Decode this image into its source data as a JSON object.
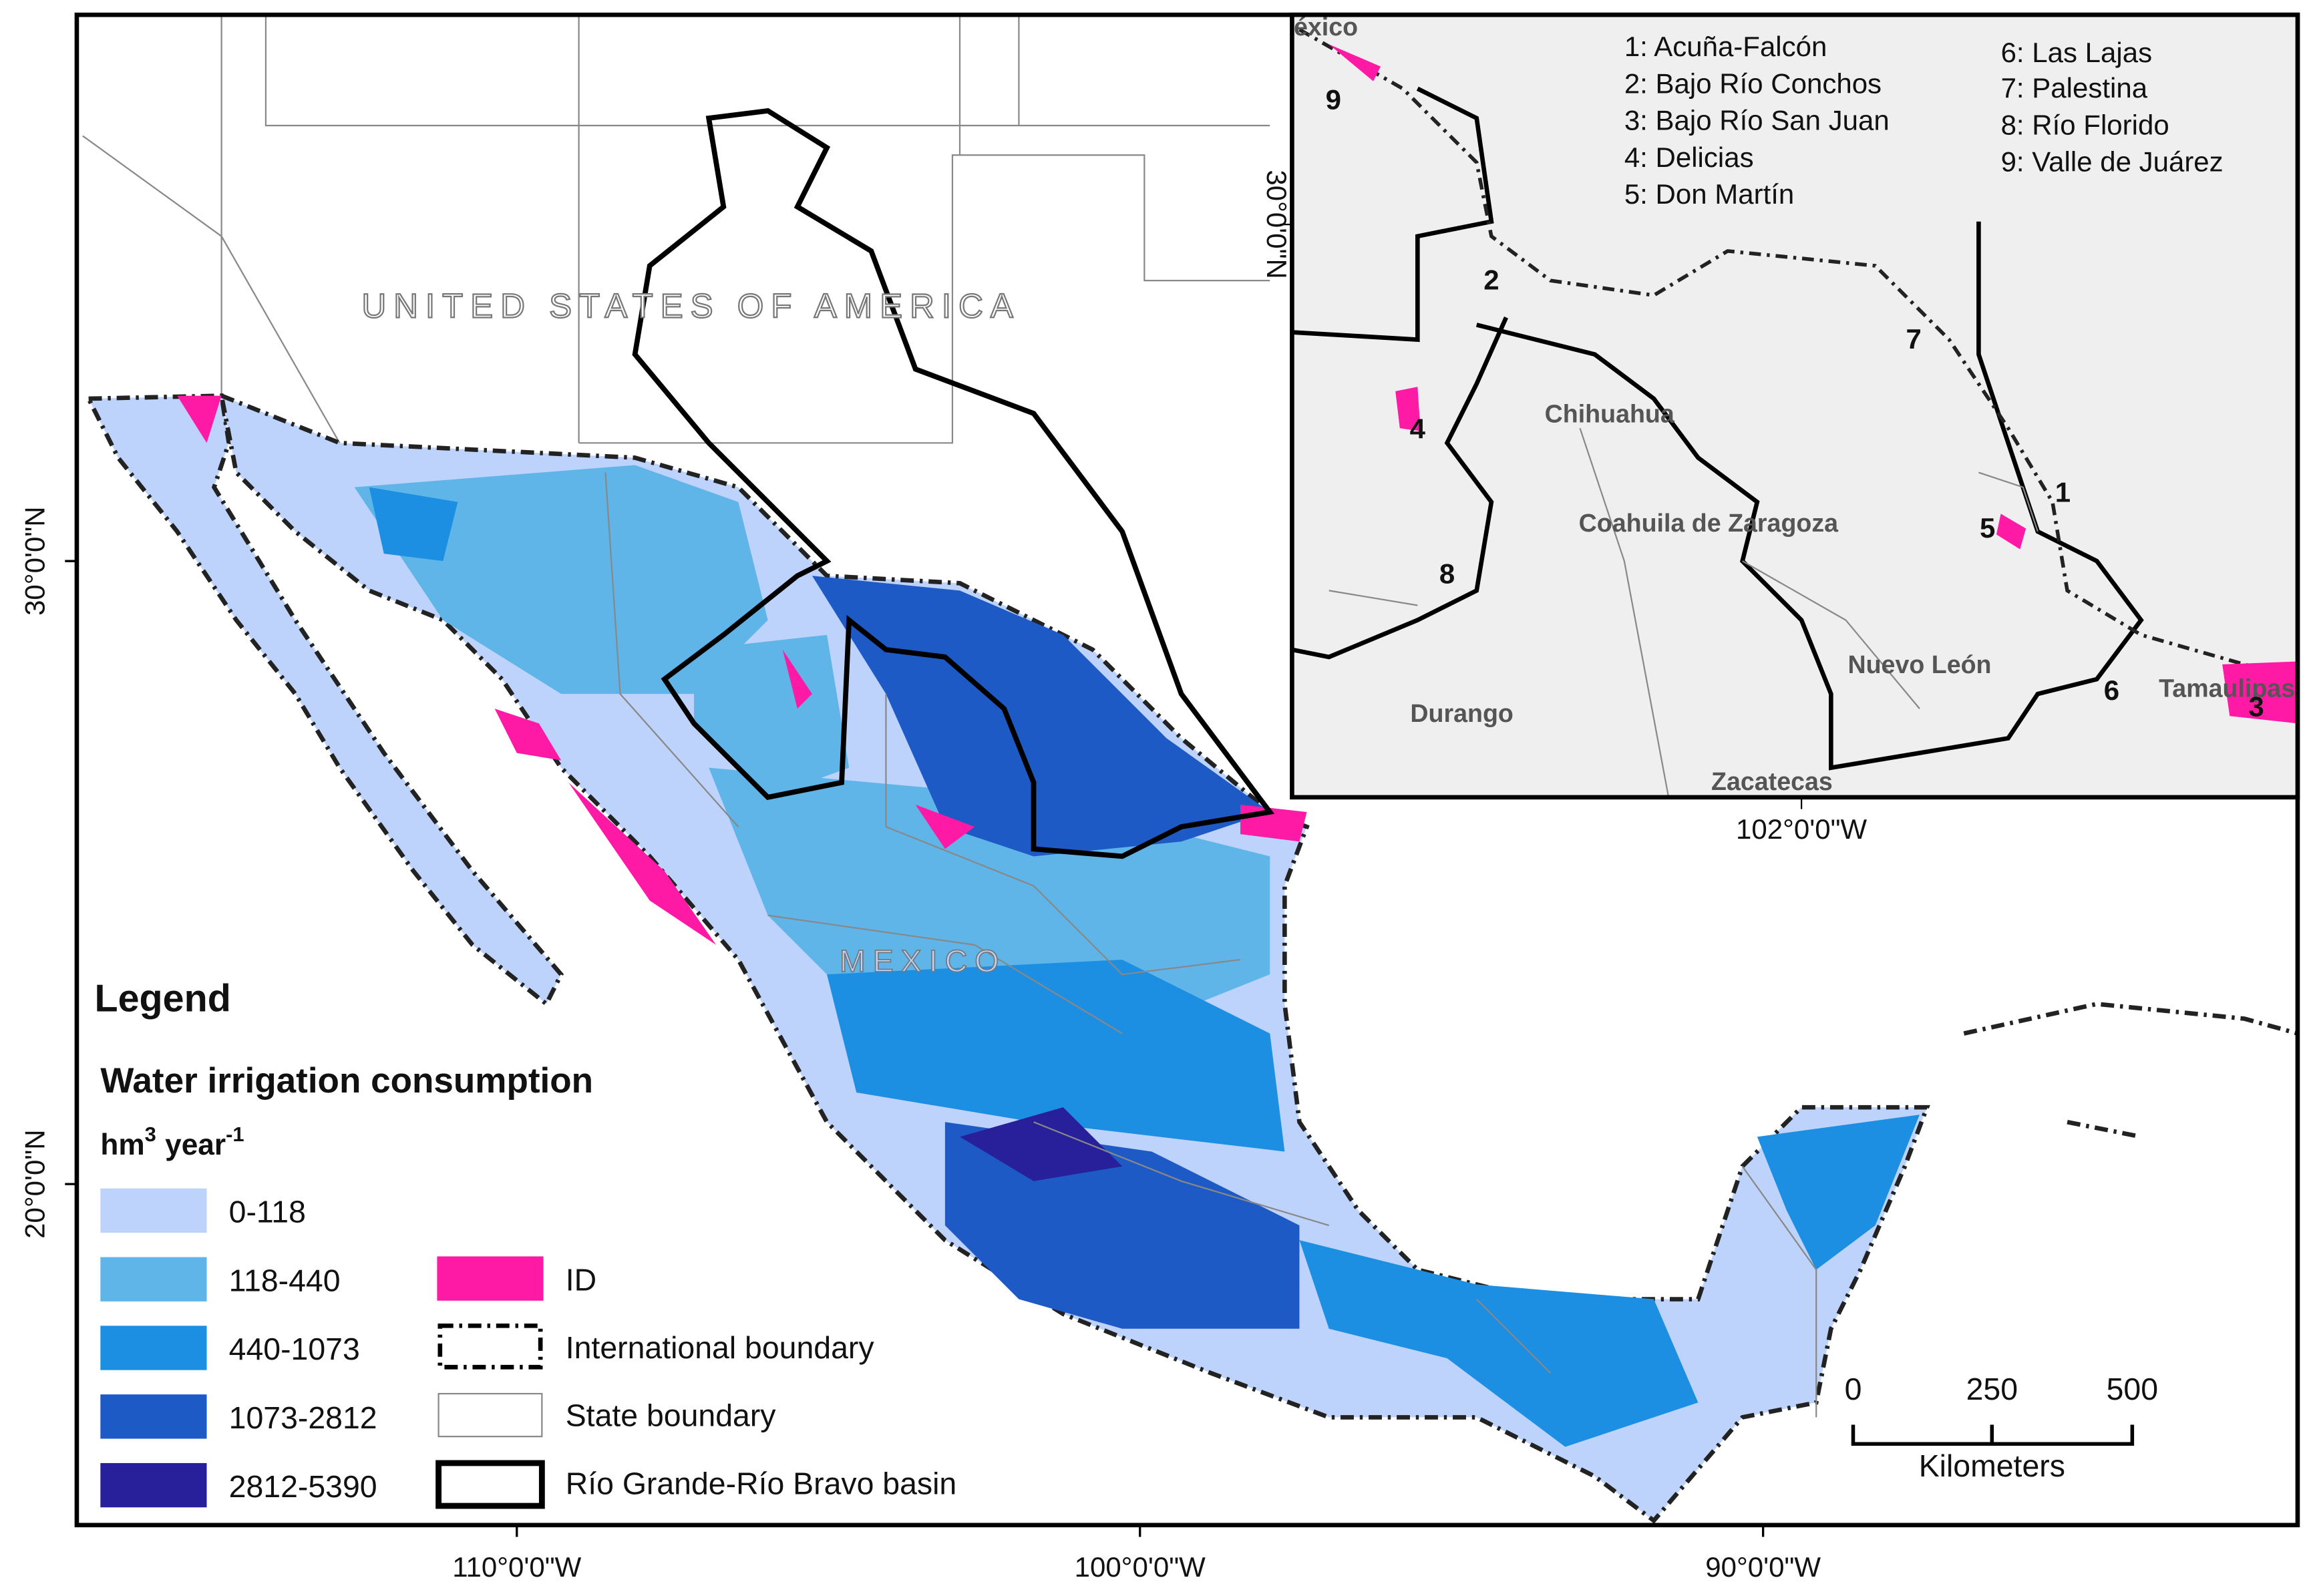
{
  "map": {
    "country_labels": {
      "usa": "UNITED STATES OF AMERICA",
      "mexico": "MEXICO"
    },
    "latitude_labels": [
      "30°0'0\"N",
      "20°0'0\"N"
    ],
    "longitude_labels": [
      "110°0'0\"W",
      "100°0'0\"W",
      "90°0'0\"W"
    ]
  },
  "legend": {
    "title": "Legend",
    "subtitle": "Water irrigation consumption",
    "unit": {
      "base": "hm",
      "base_exp": "3",
      "per": "year",
      "per_exp": "-1"
    },
    "classes": [
      {
        "label": "0-118",
        "color": "#bed3fb"
      },
      {
        "label": "118-440",
        "color": "#5fb5e8"
      },
      {
        "label": "440-1073",
        "color": "#1d8fe2"
      },
      {
        "label": "1073-2812",
        "color": "#1e5ac6"
      },
      {
        "label": "2812-5390",
        "color": "#27209a"
      }
    ],
    "symbols": [
      {
        "label": "ID",
        "color": "#ff1aa6"
      },
      {
        "label": "International boundary"
      },
      {
        "label": "State boundary"
      },
      {
        "label": "Río Grande-Río Bravo basin"
      }
    ]
  },
  "scale_bar": {
    "ticks": [
      0,
      250,
      500
    ],
    "unit": "Kilometers"
  },
  "inset": {
    "districts": [
      "1: Acuña-Falcón",
      "2: Bajo Río Conchos",
      "3: Bajo Río San Juan",
      "4: Delicias",
      "5: Don Martín",
      "6: Las Lajas",
      "7: Palestina",
      "8: Río Florido",
      "9: Valle de Juárez"
    ],
    "district_numbers": [
      "1",
      "2",
      "3",
      "4",
      "5",
      "6",
      "7",
      "8",
      "9"
    ],
    "states": [
      "Chihuahua",
      "Coahuila de Zaragoza",
      "Nuevo León",
      "Durango",
      "Zacatecas",
      "Tamaulipas",
      "México"
    ],
    "latitude_label": "30°0'0\"N",
    "longitude_label": "102°0'0\"W"
  }
}
